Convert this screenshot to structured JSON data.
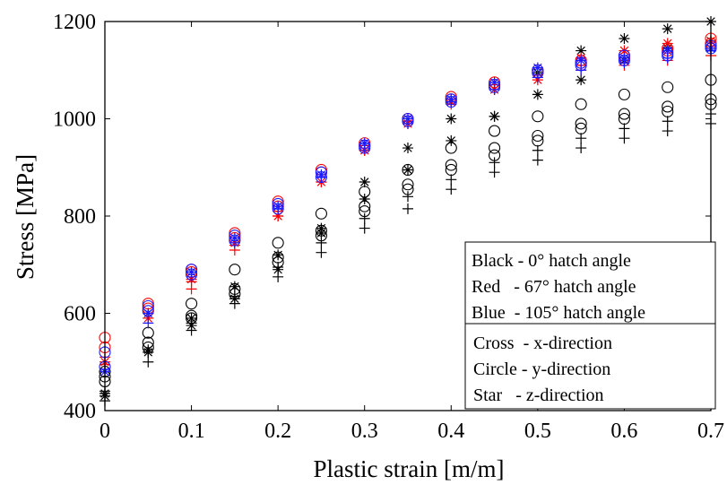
{
  "chart_data": {
    "type": "scatter",
    "title": "",
    "xlabel": "Plastic strain [m/m]",
    "ylabel": "Stress [MPa]",
    "xlim": [
      0,
      0.7
    ],
    "ylim": [
      400,
      1200
    ],
    "x_ticks": [
      0,
      0.1,
      0.2,
      0.3,
      0.4,
      0.5,
      0.6,
      0.7
    ],
    "x_tick_labels": [
      "0",
      "0.1",
      "0.2",
      "0.3",
      "0.4",
      "0.5",
      "0.6",
      "0.7"
    ],
    "y_ticks": [
      400,
      600,
      800,
      1000,
      1200
    ],
    "y_tick_labels": [
      "400",
      "600",
      "800",
      "1000",
      "1200"
    ],
    "grid": false,
    "legend_placement": "bottom-right",
    "legend": {
      "colors": [
        "Black - 0° hatch angle",
        "Red   - 67° hatch angle",
        "Blue  - 105° hatch angle"
      ],
      "markers": [
        "Cross  - x-direction",
        "Circle - y-direction",
        "Star   - z-direction"
      ]
    },
    "colors": {
      "Black": "#000000",
      "Red": "#ff0000",
      "Blue": "#1a1aff"
    },
    "x": [
      0,
      0.05,
      0.1,
      0.15,
      0.2,
      0.25,
      0.3,
      0.35,
      0.4,
      0.45,
      0.5,
      0.55,
      0.6,
      0.65,
      0.7
    ],
    "series": [
      {
        "hatch": "0°",
        "direction": "x-direction",
        "color": "#000000",
        "marker": "cross",
        "values": [
          440,
          520,
          580,
          635,
          695,
          745,
          795,
          840,
          875,
          910,
          935,
          960,
          980,
          995,
          1010
        ]
      },
      {
        "hatch": "0°",
        "direction": "x-direction",
        "color": "#000000",
        "marker": "cross",
        "values": [
          420,
          500,
          565,
          620,
          675,
          725,
          775,
          815,
          855,
          890,
          915,
          940,
          960,
          975,
          990
        ]
      },
      {
        "hatch": "0°",
        "direction": "y-direction",
        "color": "#000000",
        "marker": "circle",
        "values": [
          480,
          560,
          620,
          690,
          745,
          805,
          850,
          895,
          940,
          975,
          1005,
          1030,
          1050,
          1065,
          1080
        ]
      },
      {
        "hatch": "0°",
        "direction": "y-direction",
        "color": "#000000",
        "marker": "circle",
        "values": [
          470,
          540,
          595,
          650,
          715,
          770,
          820,
          865,
          905,
          940,
          965,
          990,
          1010,
          1025,
          1040
        ]
      },
      {
        "hatch": "0°",
        "direction": "y-direction",
        "color": "#000000",
        "marker": "circle",
        "values": [
          460,
          530,
          590,
          640,
          705,
          760,
          810,
          855,
          895,
          925,
          955,
          980,
          1000,
          1015,
          1030
        ]
      },
      {
        "hatch": "0°",
        "direction": "z-direction",
        "color": "#000000",
        "marker": "star",
        "values": [
          430,
          520,
          590,
          655,
          720,
          775,
          870,
          940,
          1000,
          1005,
          1050,
          1080,
          1165,
          1185,
          1200
        ]
      },
      {
        "hatch": "0°",
        "direction": "z-direction",
        "color": "#000000",
        "marker": "star",
        "values": [
          435,
          525,
          575,
          630,
          690,
          765,
          835,
          895,
          955,
          1005,
          1095,
          1140,
          1120,
          1145,
          1160
        ]
      },
      {
        "hatch": "67°",
        "direction": "x-direction",
        "color": "#ff0000",
        "marker": "cross",
        "values": [
          510,
          600,
          665,
          740,
          810,
          880,
          945,
          995,
          1040,
          1070,
          1090,
          1100,
          1110,
          1120,
          1130
        ]
      },
      {
        "hatch": "67°",
        "direction": "x-direction",
        "color": "#ff0000",
        "marker": "cross",
        "values": [
          495,
          590,
          650,
          730,
          800,
          870,
          935,
          990,
          1030,
          1060,
          1085,
          1110,
          1120,
          1140,
          1150
        ]
      },
      {
        "hatch": "67°",
        "direction": "y-direction",
        "color": "#ff0000",
        "marker": "circle",
        "values": [
          550,
          620,
          690,
          765,
          830,
          895,
          950,
          1000,
          1045,
          1075,
          1100,
          1120,
          1130,
          1145,
          1165
        ]
      },
      {
        "hatch": "67°",
        "direction": "y-direction",
        "color": "#ff0000",
        "marker": "circle",
        "values": [
          530,
          610,
          685,
          755,
          820,
          890,
          945,
          995,
          1040,
          1070,
          1095,
          1115,
          1125,
          1140,
          1155
        ]
      },
      {
        "hatch": "67°",
        "direction": "z-direction",
        "color": "#ff0000",
        "marker": "star",
        "values": [
          500,
          590,
          670,
          745,
          800,
          870,
          935,
          990,
          1035,
          1060,
          1080,
          1125,
          1140,
          1155,
          1160
        ]
      },
      {
        "hatch": "105°",
        "direction": "x-direction",
        "color": "#1a1aff",
        "marker": "cross",
        "values": [
          485,
          580,
          675,
          745,
          815,
          880,
          940,
          990,
          1035,
          1060,
          1085,
          1100,
          1115,
          1125,
          1140
        ]
      },
      {
        "hatch": "105°",
        "direction": "y-direction",
        "color": "#1a1aff",
        "marker": "circle",
        "values": [
          520,
          615,
          690,
          760,
          825,
          890,
          945,
          1000,
          1040,
          1070,
          1100,
          1115,
          1130,
          1135,
          1150
        ]
      },
      {
        "hatch": "105°",
        "direction": "y-direction",
        "color": "#1a1aff",
        "marker": "circle",
        "values": [
          490,
          605,
          680,
          750,
          815,
          880,
          940,
          995,
          1035,
          1065,
          1095,
          1110,
          1120,
          1130,
          1145
        ]
      },
      {
        "hatch": "105°",
        "direction": "z-direction",
        "color": "#1a1aff",
        "marker": "star",
        "values": [
          480,
          600,
          685,
          755,
          820,
          885,
          950,
          1000,
          1040,
          1075,
          1105,
          1120,
          1125,
          1140,
          1145
        ]
      }
    ]
  }
}
